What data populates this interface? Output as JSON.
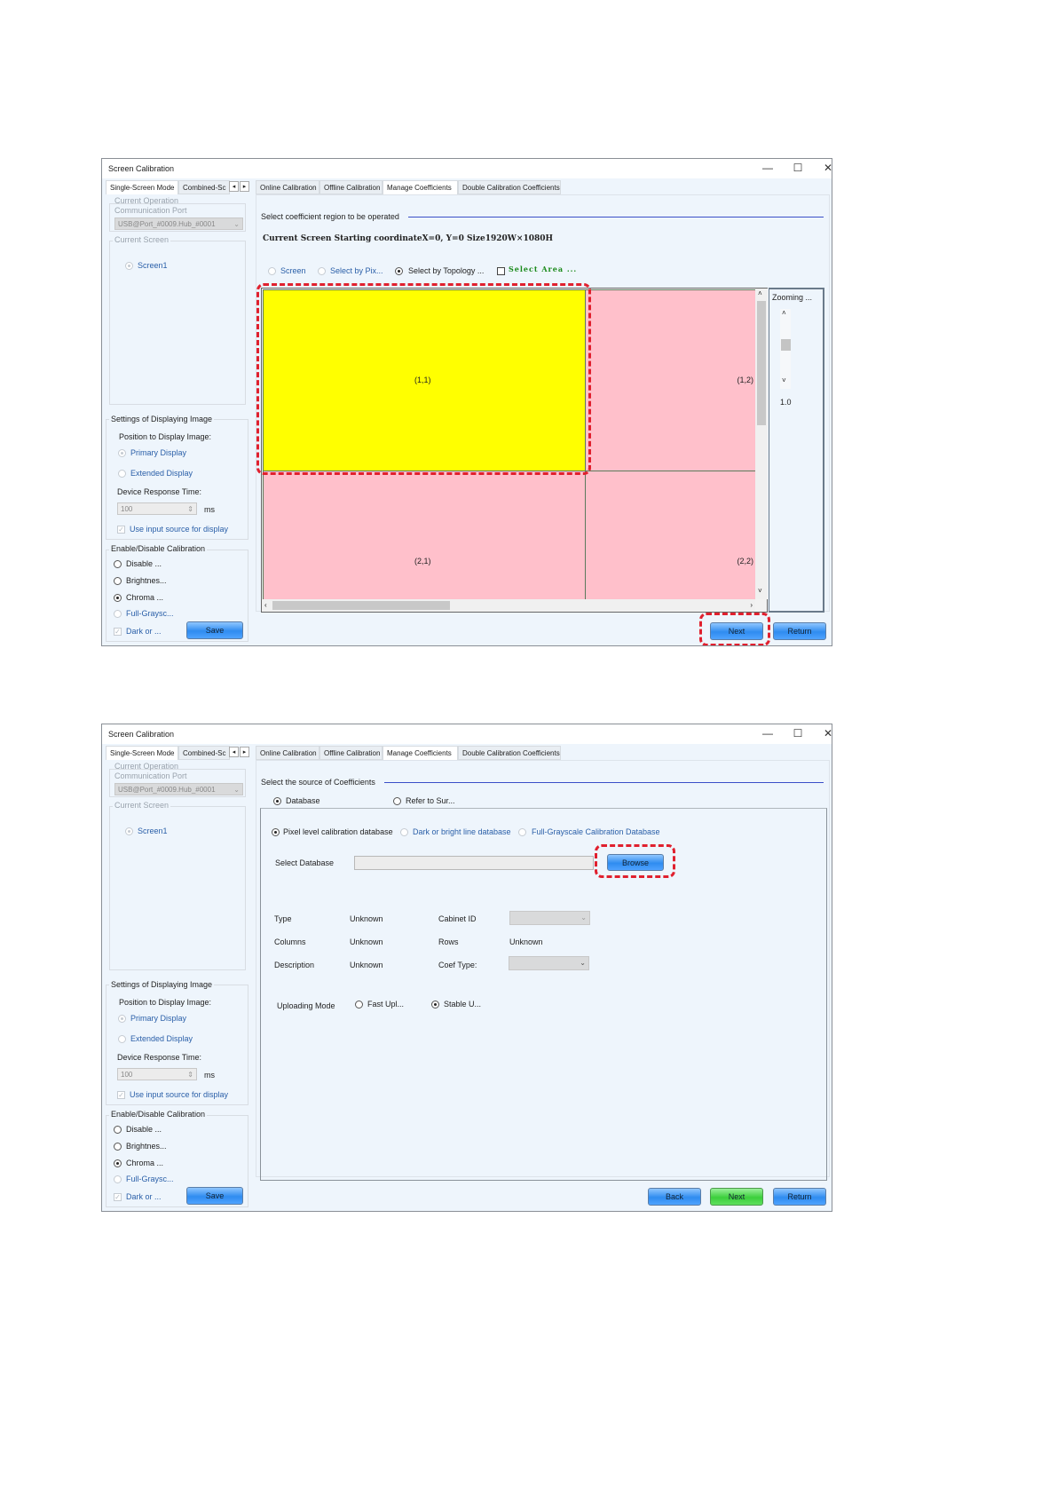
{
  "window_title": "Screen Calibration",
  "window_controls": {
    "minimize": "—",
    "maximize": "☐",
    "close": "✕"
  },
  "left_tabs": [
    "Single-Screen Mode",
    "Combined-Sc"
  ],
  "left_tab_arrows": [
    "◂",
    "▸"
  ],
  "right_tabs": [
    "Online Calibration",
    "Offline Calibration",
    "Manage Coefficients",
    "Double Calibration Coefficients"
  ],
  "left_panel": {
    "port_group_title_1": "Current Operation",
    "port_group_title_2": "Communication Port",
    "port_value": "USB@Port_#0009.Hub_#0001",
    "screen_group_title": "Current Screen",
    "screen_option": "Screen1",
    "display_group_title": "Settings of Displaying Image",
    "position_label": "Position to Display Image:",
    "primary_display": "Primary Display",
    "extended_display": "Extended Display",
    "response_label": "Device Response Time:",
    "response_value": "100",
    "response_unit": "ms",
    "use_input_source": "Use input source for display",
    "calib_group_title": "Enable/Disable Calibration",
    "calib_options": [
      "Disable ...",
      "Brightnes...",
      "Chroma ...",
      "Full-Graysc...",
      "Dark or ..."
    ],
    "calib_selected": "Chroma ...",
    "save_label": "Save"
  },
  "step1": {
    "section_title": "Select coefficient region to be operated",
    "current_screen_info": "Current Screen  Starting coordinateX=0, Y=0   Size1920W×1080H",
    "select_modes": [
      "Screen",
      "Select by Pix...",
      "Select by Topology ..."
    ],
    "selected_mode": "Select by Topology ...",
    "select_area_label": "Select Area ...",
    "cells": [
      {
        "label": "(1,1)",
        "selected": true
      },
      {
        "label": "(1,2)",
        "selected": false
      },
      {
        "label": "(2,1)",
        "selected": false
      },
      {
        "label": "(2,2)",
        "selected": false
      }
    ],
    "zoom_label": "Zooming ...",
    "zoom_value": "1.0",
    "next_label": "Next",
    "return_label": "Return",
    "colors": {
      "selected_cell": "#ffff00",
      "cell": "#ffc0cb",
      "highlight": "#e0202e"
    }
  },
  "step2": {
    "section_title": "Select the source of Coefficients",
    "source_options": [
      "Database",
      "Refer to Sur..."
    ],
    "source_selected": "Database",
    "db_types": [
      "Pixel level calibration database",
      "Dark or bright line database",
      "Full-Grayscale Calibration Database"
    ],
    "db_selected": "Pixel level calibration database",
    "select_db_label": "Select Database",
    "select_db_value": "",
    "browse_label": "Browse",
    "fields": {
      "type_label": "Type",
      "type_value": "Unknown",
      "columns_label": "Columns",
      "columns_value": "Unknown",
      "description_label": "Description",
      "description_value": "Unknown",
      "cabinet_label": "Cabinet ID",
      "cabinet_value": "",
      "rows_label": "Rows",
      "rows_value": "Unknown",
      "coef_type_label": "Coef Type:",
      "coef_type_value": ""
    },
    "upload_label": "Uploading Mode",
    "upload_options": [
      "Fast Upl...",
      "Stable U..."
    ],
    "upload_selected": "Stable U...",
    "back_label": "Back",
    "next_label": "Next",
    "return_label": "Return"
  }
}
